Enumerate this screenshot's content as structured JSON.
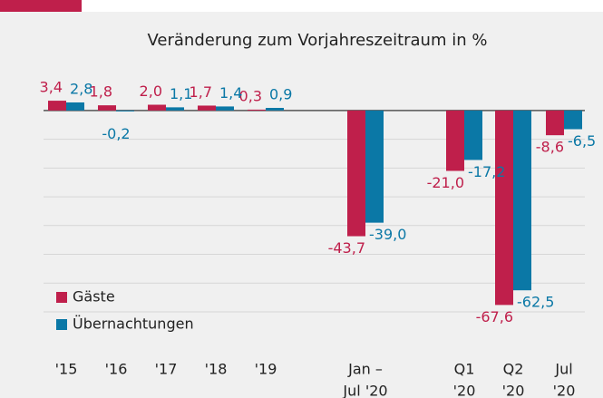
{
  "chart_data": {
    "type": "bar",
    "title": "Veränderung zum Vorjahreszeitraum in %",
    "categories": [
      "'15",
      "'16",
      "'17",
      "'18",
      "'19",
      [
        "Jan –",
        "Jul '20"
      ],
      [
        "Q1",
        "'20"
      ],
      [
        "Q2",
        "'20"
      ],
      [
        "Jul",
        "'20"
      ]
    ],
    "series": [
      {
        "name": "Gäste",
        "color": "#bf1f4b",
        "values": [
          3.4,
          1.8,
          2.0,
          1.7,
          0.3,
          -43.7,
          -21.0,
          -67.6,
          -8.6
        ],
        "value_labels": [
          "3,4",
          "1,8",
          "2,0",
          "1,7",
          "0,3",
          "-43,7",
          "-21,0",
          "-67,6",
          "-8,6"
        ]
      },
      {
        "name": "Übernachtungen",
        "color": "#0b78a6",
        "values": [
          2.8,
          -0.2,
          1.1,
          1.4,
          0.9,
          -39.0,
          -17.2,
          -62.5,
          -6.5
        ],
        "value_labels": [
          "2,8",
          "-0,2",
          "1,1",
          "1,4",
          "0,9",
          "-39,0",
          "-17,2",
          "-62,5",
          "-6,5"
        ]
      }
    ],
    "ylim": [
      -70,
      5
    ],
    "yticks": [
      0,
      -10,
      -20,
      -30,
      -40,
      -50,
      -60,
      -70
    ],
    "grid": true
  }
}
